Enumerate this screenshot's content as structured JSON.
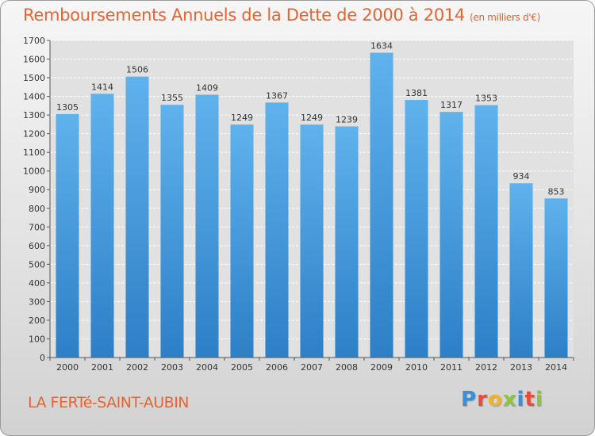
{
  "header": {
    "title": "Remboursements Annuels de la Dette de 2000 à 2014",
    "subtitle": "(en milliers d'€)"
  },
  "footer": {
    "city": "LA FERTé-SAINT-AUBIN"
  },
  "logo": {
    "letters": [
      {
        "char": "P",
        "color": "#3b8fd8"
      },
      {
        "char": "r",
        "color": "#e84a3c"
      },
      {
        "char": "o",
        "color": "#f0b12b"
      },
      {
        "char": "x",
        "color": "#8cc63f"
      },
      {
        "char": "i",
        "color": "#3b8fd8"
      },
      {
        "char": "t",
        "color": "#e84a3c"
      },
      {
        "char": "i",
        "color": "#8cc63f"
      }
    ]
  },
  "colors": {
    "accent": "#e8632e",
    "bar_top": "#5fb2ec",
    "bar_bottom": "#2d7fc7",
    "grid": "#ffffff"
  },
  "chart_data": {
    "type": "bar",
    "categories": [
      "2000",
      "2001",
      "2002",
      "2003",
      "2004",
      "2005",
      "2006",
      "2007",
      "2008",
      "2009",
      "2010",
      "2011",
      "2012",
      "2013",
      "2014"
    ],
    "values": [
      1305,
      1414,
      1506,
      1355,
      1409,
      1249,
      1367,
      1249,
      1239,
      1634,
      1381,
      1317,
      1353,
      934,
      853
    ],
    "title": "Remboursements Annuels de la Dette de 2000 à 2014",
    "ylim": [
      0,
      1700
    ],
    "ytick_step": 100,
    "grid": true,
    "legend": "none"
  }
}
